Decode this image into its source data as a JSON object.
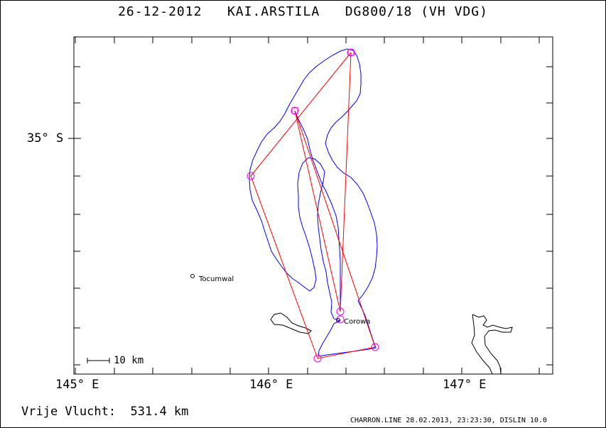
{
  "header": {
    "date": "26-12-2012",
    "pilot": "KAI.ARSTILA",
    "glider": "DG800/18 (VH VDG)"
  },
  "axes": {
    "lat_labels": [
      "35° S"
    ],
    "lon_labels": [
      "145° E",
      "146° E",
      "147° E"
    ]
  },
  "places": {
    "tocumwal": "Tocumwal",
    "corowa": "Corowa"
  },
  "scale_bar": {
    "label": "10 km"
  },
  "footer": {
    "distance": "Vrije Vlucht:  531.4 km",
    "credit": "CHARRON.LINE 28.02.2013, 23:23:30, DISLIN 10.0"
  },
  "colors": {
    "track": "#0000ff",
    "task": "#ff0000",
    "turnpoint": "#ff00ff",
    "river": "#000000",
    "frame": "#000000"
  }
}
